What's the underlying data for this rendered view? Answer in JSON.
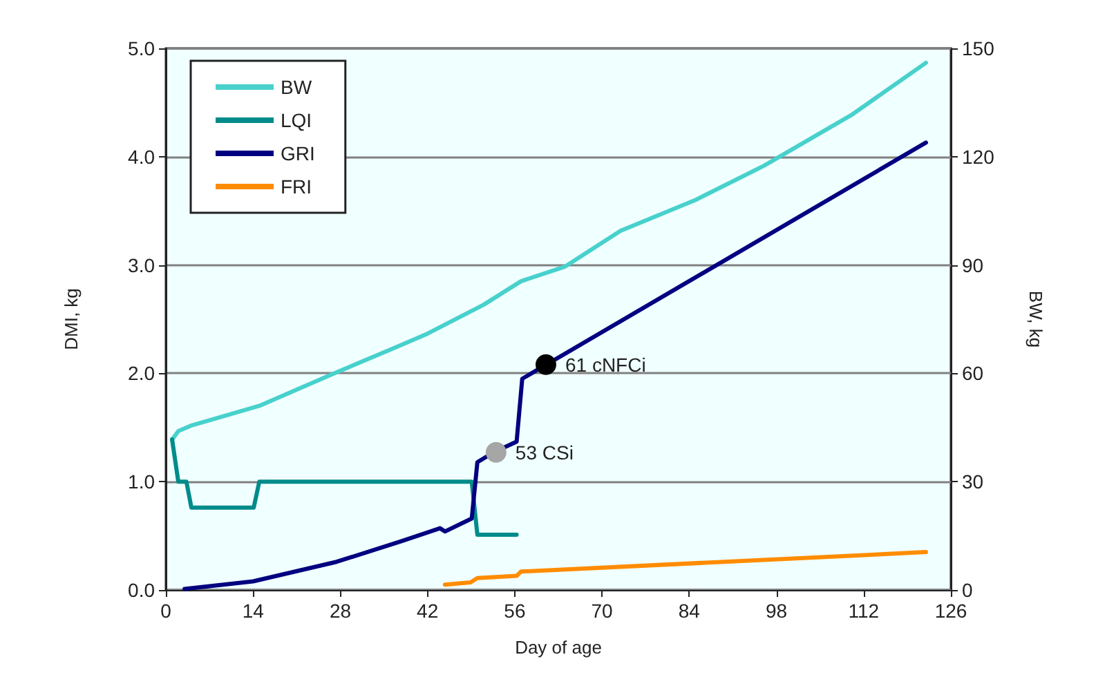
{
  "chart_data": {
    "type": "line",
    "xlabel": "Day of age",
    "ylabel": "DMI, kg",
    "y2label": "BW, kg",
    "xlim": [
      0,
      126
    ],
    "xticks": [
      0,
      14,
      28,
      42,
      56,
      70,
      84,
      98,
      112,
      126
    ],
    "ylim": [
      0,
      5
    ],
    "yticks": [
      {
        "value": 0,
        "label": "0.0"
      },
      {
        "value": 1,
        "label": "1.0"
      },
      {
        "value": 2,
        "label": "2.0"
      },
      {
        "value": 3,
        "label": "3.0"
      },
      {
        "value": 4,
        "label": "4.0"
      },
      {
        "value": 5,
        "label": "5.0"
      }
    ],
    "y2lim": [
      0,
      150
    ],
    "y2ticks": [
      0,
      30,
      60,
      90,
      120,
      150
    ],
    "grid": "y",
    "legend": "top left",
    "marker": "none",
    "line_style": "solid",
    "series": [
      {
        "name": "BW",
        "color": "#48d1cc",
        "axis": "y2",
        "x": [
          1,
          2,
          4,
          9,
          15,
          27,
          38,
          42,
          51,
          57,
          64,
          73,
          85,
          96,
          110,
          122
        ],
        "values": [
          41.6,
          44,
          45.5,
          48,
          51,
          60,
          68,
          71,
          79,
          85.5,
          89.5,
          99.5,
          108,
          117.5,
          131.5,
          146
        ]
      },
      {
        "name": "LQI",
        "color": "#008b8b",
        "x": [
          1,
          2,
          3.3,
          4.1,
          14.1,
          15,
          49.1,
          50,
          56.3
        ],
        "values": [
          1.39,
          1.0,
          1.0,
          0.76,
          0.76,
          1.0,
          1.0,
          0.51,
          0.51
        ]
      },
      {
        "name": "GRI",
        "color": "#000080",
        "x": [
          3,
          14,
          27.4,
          37.8,
          44,
          44.8,
          49.1,
          50,
          52.6,
          56.3,
          57.2,
          122
        ],
        "values": [
          0.01,
          0.08,
          0.26,
          0.45,
          0.57,
          0.54,
          0.66,
          1.18,
          1.27,
          1.37,
          1.95,
          4.13
        ]
      },
      {
        "name": "FRI",
        "color": "#ff8c00",
        "x": [
          44.8,
          48.9,
          50,
          56.3,
          57,
          122
        ],
        "values": [
          0.05,
          0.07,
          0.11,
          0.13,
          0.17,
          0.35
        ]
      },
      {
        "type": "scatter",
        "marker": "circle",
        "color": "#a6a6a6",
        "x": [
          53
        ],
        "values": [
          1.27
        ]
      },
      {
        "type": "scatter",
        "marker": "circle",
        "color": "#000000",
        "x": [
          61
        ],
        "values": [
          2.08
        ]
      }
    ],
    "annotations": [
      {
        "text": "53 CSi",
        "x": 53,
        "y": 1.27
      },
      {
        "text": "61 cNFCi",
        "x": 61,
        "y": 2.08
      }
    ]
  }
}
